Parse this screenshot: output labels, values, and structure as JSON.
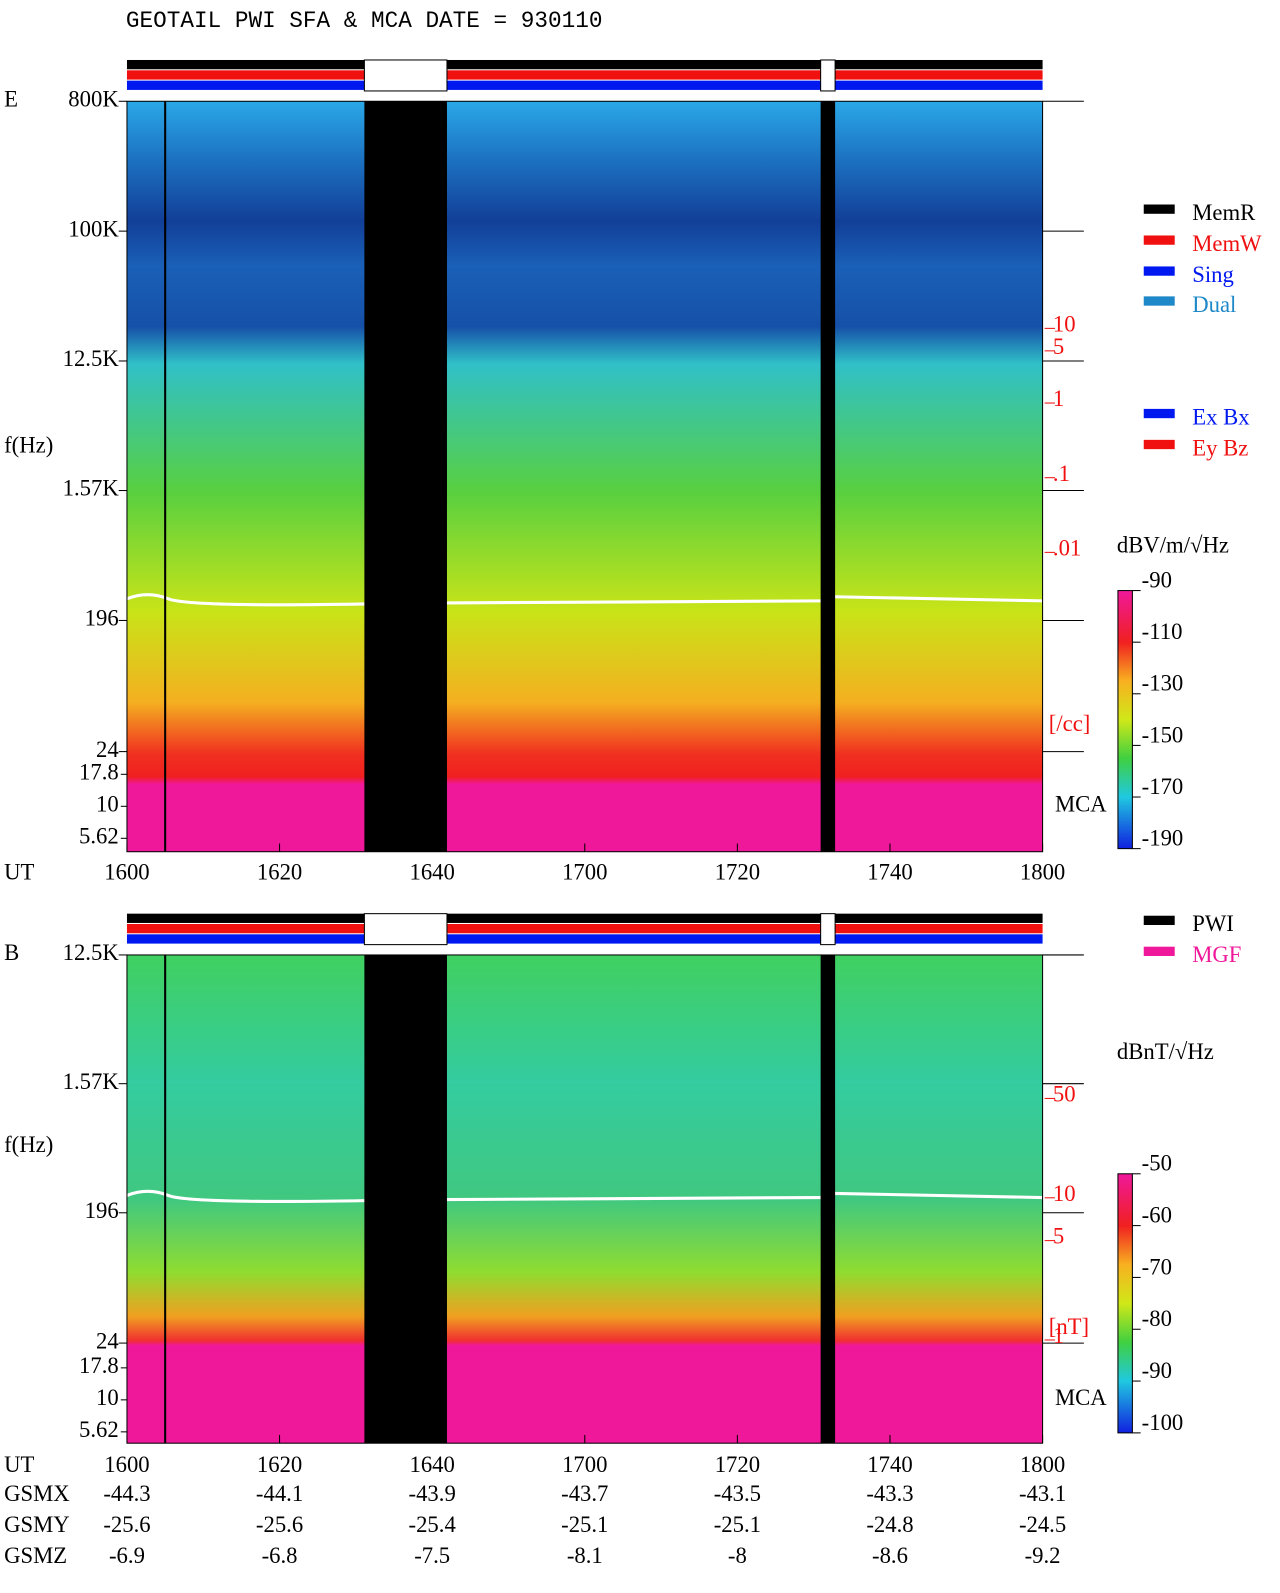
{
  "title": "GEOTAIL  PWI SFA & MCA   DATE = 930110",
  "chart_data": [
    {
      "type": "spectrogram",
      "panel": "E",
      "y_label": "f(Hz)",
      "x_label": "UT",
      "categories": [
        "1600",
        "1620",
        "1640",
        "1700",
        "1720",
        "1740",
        "1800"
      ],
      "log_y": true,
      "ylim": [
        24,
        800000
      ],
      "yticks": [
        {
          "value": 800000,
          "label": "800K"
        },
        {
          "value": 100000,
          "label": "100K"
        },
        {
          "value": 12500,
          "label": "12.5K"
        },
        {
          "value": 1570,
          "label": "1.57K"
        },
        196,
        24
      ],
      "mca_label": "MCA",
      "mca_ticks": [
        17.8,
        10,
        5.62
      ],
      "y2lim": [
        0.01,
        10
      ],
      "y2ticks": [
        10,
        5,
        1,
        {
          "value": 0.1,
          "label": ".1"
        },
        {
          "value": 0.01,
          "label": ".01"
        }
      ],
      "y2_label": "[/cc]",
      "colorbar": {
        "label": "dBV/m/√Hz",
        "lim": [
          -90,
          -190
        ],
        "ticks": [
          -90,
          -110,
          -130,
          -150,
          -170,
          -190
        ]
      },
      "legend": [
        {
          "name": "MemR",
          "color": "#000000"
        },
        {
          "name": "MemW",
          "color": "#f01010"
        },
        {
          "name": "Sing",
          "color": "#0018f0"
        },
        {
          "name": "Dual",
          "color": "#1e88c8"
        }
      ],
      "legend2": [
        {
          "name": "Ex Bx",
          "color": "#0018f0"
        },
        {
          "name": "Ey Bz",
          "color": "#f01010"
        }
      ]
    },
    {
      "type": "spectrogram",
      "panel": "B",
      "y_label": "f(Hz)",
      "x_label": "UT",
      "categories": [
        "1600",
        "1620",
        "1640",
        "1700",
        "1720",
        "1740",
        "1800"
      ],
      "log_y": true,
      "ylim": [
        24,
        12500
      ],
      "yticks": [
        {
          "value": 12500,
          "label": "12.5K"
        },
        {
          "value": 1570,
          "label": "1.57K"
        },
        196,
        24
      ],
      "mca_label": "MCA",
      "mca_ticks": [
        17.8,
        10,
        5.62
      ],
      "y2lim": [
        1,
        50
      ],
      "y2ticks": [
        50,
        10,
        5,
        1
      ],
      "y2_label": "[nT]",
      "colorbar": {
        "label": "dBnT/√Hz",
        "lim": [
          -50,
          -100
        ],
        "ticks": [
          -50,
          -60,
          -70,
          -80,
          -90,
          -100
        ]
      },
      "legend": [
        {
          "name": "PWI",
          "color": "#000000"
        },
        {
          "name": "MGF",
          "color": "#f0189a"
        }
      ]
    }
  ],
  "orbit": [
    {
      "name": "GSMX",
      "values": [
        -44.3,
        -44.1,
        -43.9,
        -43.7,
        -43.5,
        -43.3,
        -43.1
      ]
    },
    {
      "name": "GSMY",
      "values": [
        -25.6,
        -25.6,
        -25.4,
        -25.1,
        -25.1,
        -24.8,
        -24.5
      ]
    },
    {
      "name": "GSMZ",
      "values": [
        -6.9,
        -6.8,
        -7.5,
        -8.1,
        -8.0,
        -8.6,
        -9.2
      ]
    }
  ]
}
